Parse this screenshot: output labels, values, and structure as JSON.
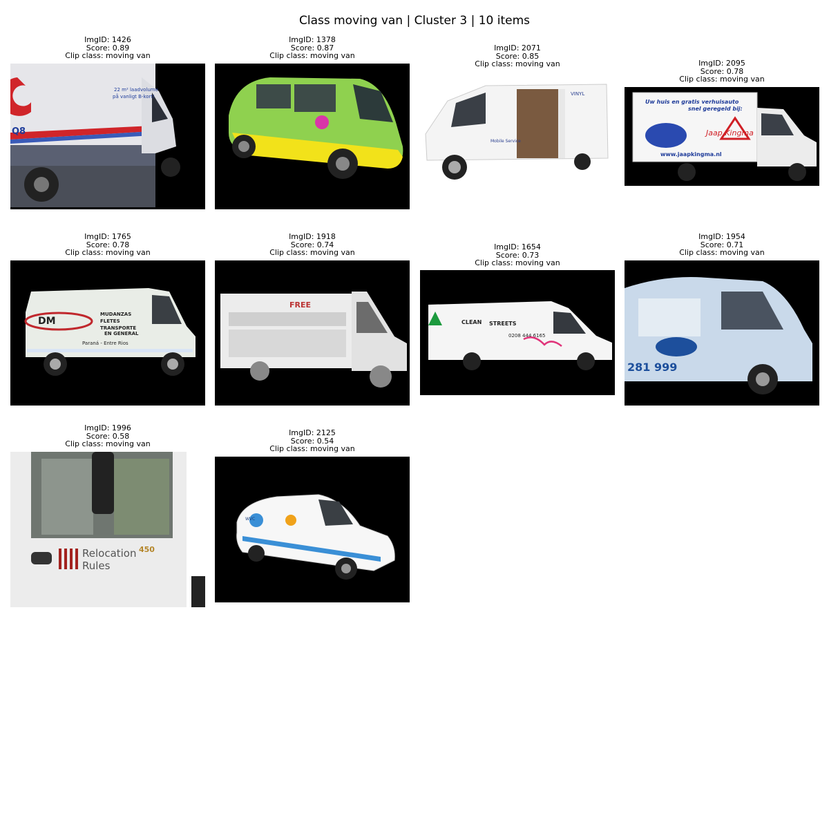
{
  "title": "Class moving van | Cluster 3 | 10 items",
  "items": [
    {
      "img_id": "ImgID: 1426",
      "score": "Score: 0.89",
      "clip": "Clip class: moving van",
      "van_text": [
        "22 m² laadvolume",
        "på vanligt B-kort!",
        "Q8"
      ],
      "body_color": "#e6e6ea",
      "accent_color": "#d0252a"
    },
    {
      "img_id": "ImgID: 1378",
      "score": "Score: 0.87",
      "clip": "Clip class: moving van",
      "van_text": [],
      "body_color": "#8fd14f",
      "accent_color": "#f2e21a"
    },
    {
      "img_id": "ImgID: 2071",
      "score": "Score: 0.85",
      "clip": "Clip class: moving van",
      "van_text": [
        "VINYL",
        "Mobile Service"
      ],
      "body_color": "#f4f4f4",
      "accent_color": "#2a3f8f"
    },
    {
      "img_id": "ImgID: 2095",
      "score": "Score: 0.78",
      "clip": "Clip class: moving van",
      "van_text": [
        "Uw huis en gratis verhuisauto",
        "snel geregeld bij:",
        "Jaap Kingma",
        "www.jaapkingma.nl"
      ],
      "body_color": "#f6f6f6",
      "accent_color": "#1f3c9a"
    },
    {
      "img_id": "ImgID: 1765",
      "score": "Score: 0.78",
      "clip": "Clip class: moving van",
      "van_text": [
        "DM",
        "MUDANZAS",
        "FLETES",
        "TRANSPORTE",
        "EN GENERAL",
        "Paraná - Entre Rios"
      ],
      "body_color": "#e9ede7",
      "accent_color": "#c0282d"
    },
    {
      "img_id": "ImgID: 1918",
      "score": "Score: 0.74",
      "clip": "Clip class: moving van",
      "van_text": [
        "FREE"
      ],
      "body_color": "#ececec",
      "accent_color": "#b33"
    },
    {
      "img_id": "ImgID: 1654",
      "score": "Score: 0.73",
      "clip": "Clip class: moving van",
      "van_text": [
        "CLEAN",
        "STREETS",
        "0208 444 6165"
      ],
      "body_color": "#f5f5f5",
      "accent_color": "#e0347a"
    },
    {
      "img_id": "ImgID: 1954",
      "score": "Score: 0.71",
      "clip": "Clip class: moving van",
      "van_text": [
        "281 999"
      ],
      "body_color": "#c9d9ea",
      "accent_color": "#1d4f9c"
    },
    {
      "img_id": "ImgID: 1996",
      "score": "Score: 0.58",
      "clip": "Clip class: moving van",
      "van_text": [
        "Relocation",
        "Rules",
        "450"
      ],
      "body_color": "#ececec",
      "accent_color": "#a3231f"
    },
    {
      "img_id": "ImgID: 2125",
      "score": "Score: 0.54",
      "clip": "Clip class: moving van",
      "van_text": [
        "WVC"
      ],
      "body_color": "#f7f7f7",
      "accent_color": "#3a8fd6"
    }
  ]
}
